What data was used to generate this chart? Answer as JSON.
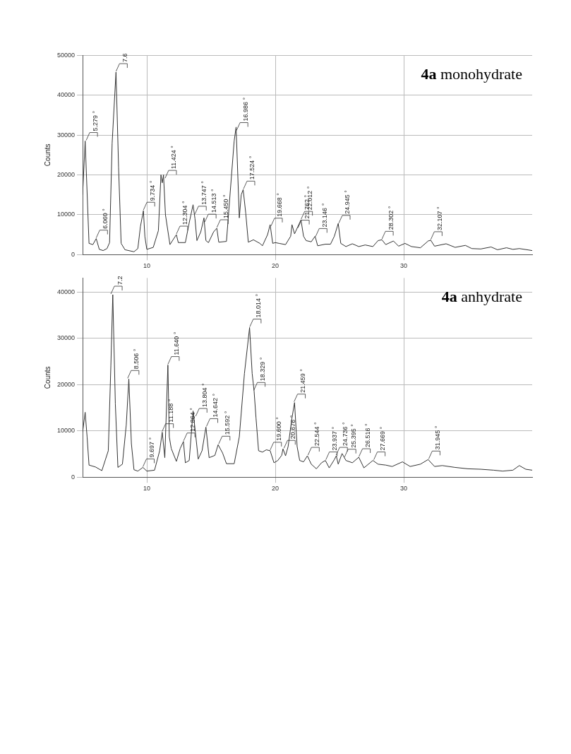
{
  "chart_data": [
    {
      "type": "line",
      "title": "4a monohydrate",
      "ylabel": "Counts",
      "marker": "none",
      "grid": true,
      "legend": false,
      "color": "#333333",
      "xlim": [
        5,
        40
      ],
      "xticks": [
        10,
        20,
        30
      ],
      "ylim": [
        0,
        50000
      ],
      "yticks": [
        0,
        10000,
        20000,
        30000,
        40000,
        50000
      ],
      "x": [
        5.0,
        5.2,
        5.5,
        5.8,
        6.06,
        6.3,
        6.6,
        6.9,
        7.1,
        7.3,
        7.6,
        7.8,
        8.0,
        8.3,
        9.0,
        9.3,
        9.5,
        9.734,
        9.85,
        10.0,
        10.5,
        10.9,
        11.1,
        11.2,
        11.3,
        11.45,
        11.8,
        12.3,
        12.45,
        13.0,
        13.3,
        13.6,
        13.75,
        13.9,
        14.2,
        14.45,
        14.6,
        14.8,
        15.2,
        15.45,
        15.6,
        16.2,
        16.5,
        16.8,
        16.95,
        17.2,
        17.35,
        17.5,
        17.7,
        17.9,
        18.3,
        18.8,
        19.0,
        19.4,
        19.6,
        19.8,
        20.0,
        20.3,
        20.8,
        21.2,
        21.3,
        21.5,
        22.0,
        22.2,
        22.4,
        22.8,
        23.1,
        23.3,
        23.9,
        24.3,
        24.6,
        24.9,
        25.1,
        25.5,
        26.0,
        26.5,
        27.0,
        27.6,
        28.0,
        28.3,
        28.6,
        29.2,
        29.6,
        30.1,
        30.6,
        31.3,
        31.9,
        32.1,
        32.4,
        33.3,
        34.0,
        34.8,
        35.3,
        36.0,
        36.8,
        37.3,
        38.0,
        38.5,
        39.0,
        40.0
      ],
      "values": [
        15000,
        28500,
        2800,
        2500,
        4000,
        1300,
        1000,
        1500,
        3000,
        28000,
        45800,
        22000,
        2800,
        1200,
        700,
        1500,
        7000,
        11000,
        4500,
        1300,
        1800,
        6000,
        20000,
        18000,
        20000,
        10000,
        2500,
        5000,
        3000,
        3000,
        8000,
        12500,
        9000,
        3500,
        5700,
        9200,
        3500,
        3000,
        5700,
        6600,
        3100,
        3300,
        16000,
        28500,
        32000,
        9200,
        15000,
        16300,
        10400,
        3100,
        3700,
        2800,
        2200,
        5000,
        7500,
        2800,
        3000,
        2800,
        2500,
        4600,
        7500,
        5200,
        8700,
        4600,
        3500,
        3200,
        4600,
        2200,
        2600,
        2600,
        4600,
        7800,
        2800,
        2000,
        2700,
        2000,
        2400,
        2000,
        3500,
        3700,
        2500,
        3400,
        2100,
        2800,
        2000,
        1700,
        3400,
        3600,
        2100,
        2700,
        1800,
        2300,
        1500,
        1400,
        1900,
        1200,
        1700,
        1300,
        1500,
        1000
      ],
      "annotations": [
        {
          "text": "5.279 °",
          "x": 5.279,
          "y": 28500
        },
        {
          "text": "6.060 °",
          "x": 6.06,
          "y": 4000
        },
        {
          "text": "7.6",
          "x": 7.6,
          "y": 45800
        },
        {
          "text": "9.734 °",
          "x": 9.734,
          "y": 11000
        },
        {
          "text": "11.424 °",
          "x": 11.424,
          "y": 19000
        },
        {
          "text": "12.304 °",
          "x": 12.304,
          "y": 5000
        },
        {
          "text": "13.747 °",
          "x": 13.747,
          "y": 10000
        },
        {
          "text": "14.513 °",
          "x": 14.513,
          "y": 8000
        },
        {
          "text": "15.450 °",
          "x": 15.45,
          "y": 6600
        },
        {
          "text": "16.986 °",
          "x": 16.986,
          "y": 31000
        },
        {
          "text": "17.524 °",
          "x": 17.524,
          "y": 16300
        },
        {
          "text": "19.668 °",
          "x": 19.668,
          "y": 7000
        },
        {
          "text": "21.762 °",
          "x": 21.762,
          "y": 6500
        },
        {
          "text": "22.012 °",
          "x": 22.012,
          "y": 8700
        },
        {
          "text": "23.146 °",
          "x": 23.146,
          "y": 4400
        },
        {
          "text": "24.945 °",
          "x": 24.945,
          "y": 7700
        },
        {
          "text": "28.302 °",
          "x": 28.302,
          "y": 3700
        },
        {
          "text": "32.107 °",
          "x": 32.107,
          "y": 3600
        }
      ]
    },
    {
      "type": "line",
      "title": "4a anhydrate",
      "ylabel": "Counts",
      "marker": "none",
      "grid": true,
      "legend": false,
      "color": "#333333",
      "xlim": [
        5,
        40
      ],
      "xticks": [
        10,
        20,
        30
      ],
      "ylim": [
        0,
        43000
      ],
      "yticks": [
        0,
        10000,
        20000,
        30000,
        40000
      ],
      "x": [
        5.0,
        5.2,
        5.35,
        5.5,
        6.0,
        6.5,
        7.0,
        7.2,
        7.35,
        7.55,
        7.75,
        8.1,
        8.4,
        8.6,
        8.8,
        9.0,
        9.3,
        9.697,
        10.0,
        10.6,
        11.0,
        11.2,
        11.4,
        11.64,
        11.75,
        11.9,
        12.3,
        12.6,
        12.85,
        13.0,
        13.3,
        13.6,
        13.8,
        14.0,
        14.3,
        14.6,
        14.85,
        15.3,
        15.55,
        15.9,
        16.2,
        16.8,
        17.2,
        17.6,
        18.0,
        18.2,
        18.35,
        18.5,
        18.7,
        19.0,
        19.3,
        19.6,
        19.9,
        20.2,
        20.5,
        20.6,
        20.8,
        21.0,
        21.3,
        21.5,
        21.7,
        21.9,
        22.2,
        22.5,
        22.8,
        23.2,
        23.6,
        23.9,
        24.2,
        24.6,
        24.75,
        24.9,
        25.2,
        25.5,
        26.0,
        26.5,
        26.9,
        27.6,
        28.0,
        28.6,
        29.1,
        29.9,
        30.5,
        31.3,
        31.9,
        32.4,
        33.0,
        34.0,
        35.0,
        36.0,
        37.0,
        37.7,
        38.5,
        39.0,
        39.5,
        40.0
      ],
      "values": [
        9700,
        14000,
        8700,
        2600,
        2200,
        1400,
        5700,
        24000,
        39400,
        15800,
        2100,
        2800,
        11300,
        21200,
        7200,
        1600,
        1300,
        2100,
        1300,
        1500,
        5700,
        9700,
        4200,
        24200,
        8700,
        6200,
        3400,
        6200,
        7700,
        3100,
        3600,
        14300,
        9200,
        3900,
        5700,
        10800,
        4200,
        4700,
        7000,
        5200,
        2900,
        2900,
        8700,
        22400,
        32300,
        22400,
        18600,
        12800,
        5700,
        5400,
        5900,
        5700,
        3100,
        3600,
        4700,
        6100,
        4600,
        6600,
        12800,
        16100,
        6600,
        3600,
        3300,
        4600,
        2800,
        1800,
        3100,
        3600,
        2000,
        3800,
        4600,
        2800,
        5100,
        3600,
        3100,
        4300,
        2000,
        3600,
        2800,
        2600,
        2300,
        3300,
        2300,
        2800,
        3800,
        2300,
        2500,
        2100,
        1800,
        1700,
        1500,
        1300,
        1500,
        2500,
        1700,
        1500
      ],
      "annotations": [
        {
          "text": "7.2",
          "x": 7.2,
          "y": 39400
        },
        {
          "text": "8.506 °",
          "x": 8.506,
          "y": 21200
        },
        {
          "text": "9.697 °",
          "x": 9.697,
          "y": 2100
        },
        {
          "text": "11.188 °",
          "x": 11.188,
          "y": 9700
        },
        {
          "text": "11.640 °",
          "x": 11.64,
          "y": 24200
        },
        {
          "text": "12.864 °",
          "x": 12.864,
          "y": 7700
        },
        {
          "text": "13.804 °",
          "x": 13.804,
          "y": 13000
        },
        {
          "text": "14.642 °",
          "x": 14.642,
          "y": 10800
        },
        {
          "text": "15.592 °",
          "x": 15.592,
          "y": 7000
        },
        {
          "text": "18.014 °",
          "x": 18.014,
          "y": 32300
        },
        {
          "text": "18.329 °",
          "x": 18.329,
          "y": 18600
        },
        {
          "text": "19.600 °",
          "x": 19.6,
          "y": 5700
        },
        {
          "text": "20.676 °",
          "x": 20.676,
          "y": 6100
        },
        {
          "text": "21.459 °",
          "x": 21.459,
          "y": 16100
        },
        {
          "text": "22.544 °",
          "x": 22.544,
          "y": 4600
        },
        {
          "text": "23.937 °",
          "x": 23.937,
          "y": 3600
        },
        {
          "text": "24.736 °",
          "x": 24.736,
          "y": 4600
        },
        {
          "text": "25.395 °",
          "x": 25.395,
          "y": 4200
        },
        {
          "text": "26.516 °",
          "x": 26.516,
          "y": 4300
        },
        {
          "text": "27.669 °",
          "x": 27.669,
          "y": 3600
        },
        {
          "text": "31.945 °",
          "x": 31.945,
          "y": 3800
        }
      ]
    }
  ]
}
